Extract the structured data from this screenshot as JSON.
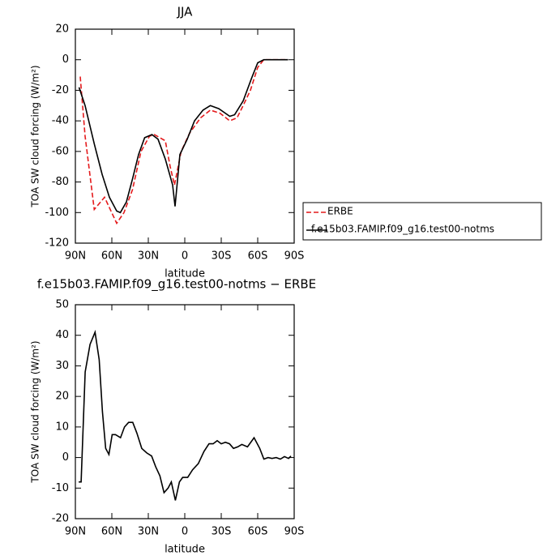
{
  "chart_data": [
    {
      "type": "line",
      "title": "JJA",
      "xlabel": "latitude",
      "ylabel": "TOA SW cloud forcing (W/m²)",
      "xlim": [
        90,
        -90
      ],
      "xticks": [
        {
          "value": 90,
          "label": "90N"
        },
        {
          "value": 60,
          "label": "60N"
        },
        {
          "value": 30,
          "label": "30N"
        },
        0,
        {
          "value": -30,
          "label": "30S"
        },
        {
          "value": -60,
          "label": "60S"
        },
        {
          "value": -90,
          "label": "90S"
        }
      ],
      "ylim": [
        -120,
        20
      ],
      "yticks": [
        -120,
        -100,
        -80,
        -60,
        -40,
        -20,
        0,
        20
      ],
      "legend": "right",
      "series": [
        {
          "name": "ERBE",
          "color": "#e41a1c",
          "line_style": "dashed",
          "x": [
            86,
            82,
            74.5,
            66,
            56,
            50,
            43,
            36,
            29,
            25,
            16,
            12,
            8.5,
            3,
            -4,
            -13,
            -21,
            -29,
            -37,
            -43,
            -48,
            -54,
            -60,
            -65,
            -85
          ],
          "values": [
            -11,
            -50,
            -98,
            -90,
            -107,
            -100,
            -85,
            -60,
            -50,
            -49,
            -53,
            -70,
            -82,
            -60,
            -48,
            -38,
            -33,
            -35,
            -40,
            -38,
            -30,
            -20,
            -5,
            0,
            0
          ]
        },
        {
          "name": "f.e15b03.FAMIP.f09_g16.test00-notms",
          "color": "#000000",
          "line_style": "solid",
          "x": [
            87,
            82,
            74.5,
            68,
            62,
            56,
            53,
            48,
            43,
            38,
            33,
            27,
            22,
            16,
            10,
            8,
            4,
            -2,
            -8,
            -15,
            -21,
            -28,
            -37,
            -41,
            -48,
            -55,
            -60,
            -65,
            -85
          ],
          "values": [
            -18,
            -30,
            -55,
            -75,
            -90,
            -99,
            -100,
            -93,
            -78,
            -62,
            -51,
            -49,
            -52,
            -65,
            -82,
            -96,
            -62,
            -52,
            -40,
            -33,
            -30,
            -32,
            -37,
            -36,
            -27,
            -12,
            -2,
            0,
            0
          ]
        }
      ]
    },
    {
      "type": "line",
      "title": "f.e15b03.FAMIP.f09_g16.test00-notms − ERBE",
      "xlabel": "latitude",
      "ylabel": "TOA SW cloud forcing (W/m²)",
      "xlim": [
        90,
        -90
      ],
      "xticks": [
        {
          "value": 90,
          "label": "90N"
        },
        {
          "value": 60,
          "label": "60N"
        },
        {
          "value": 30,
          "label": "30N"
        },
        0,
        {
          "value": -30,
          "label": "30S"
        },
        {
          "value": -60,
          "label": "60S"
        },
        {
          "value": -90,
          "label": "90S"
        }
      ],
      "ylim": [
        -20,
        50
      ],
      "yticks": [
        -20,
        -10,
        0,
        10,
        20,
        30,
        40,
        50
      ],
      "series": [
        {
          "color": "#000000",
          "line_style": "solid",
          "x": [
            87.3,
            85.3,
            81.9,
            77.9,
            73.8,
            70.4,
            67.7,
            65.1,
            62.4,
            59.7,
            57.0,
            52.9,
            49.6,
            46.2,
            42.8,
            39.4,
            35.4,
            31.3,
            27.3,
            23.9,
            20.5,
            17.1,
            13.7,
            11.1,
            7.7,
            4.4,
            1.7,
            -2.4,
            -6.4,
            -11.1,
            -15.8,
            -19.9,
            -23.3,
            -26.7,
            -30.0,
            -33.4,
            -36.8,
            -40.1,
            -43.5,
            -46.9,
            -51.6,
            -57.0,
            -61.7,
            -65.1,
            -68.5,
            -71.8,
            -75.2,
            -78.6,
            -82.0,
            -85.4,
            -87.3
          ],
          "values": [
            -8,
            -8,
            28,
            37,
            41,
            32,
            15,
            3,
            1,
            7.5,
            7.5,
            6.5,
            10,
            11.5,
            11.5,
            8,
            3,
            1.5,
            0.5,
            -3,
            -6,
            -11.5,
            -10,
            -8,
            -14,
            -8,
            -6.5,
            -6.5,
            -4,
            -2,
            2,
            4.5,
            4.5,
            5.5,
            4.5,
            5,
            4.5,
            3,
            3.5,
            4.3,
            3.5,
            6.5,
            3,
            -0.5,
            0,
            -0.3,
            0,
            -0.5,
            0.3,
            -0.3,
            0.5
          ]
        }
      ]
    }
  ]
}
